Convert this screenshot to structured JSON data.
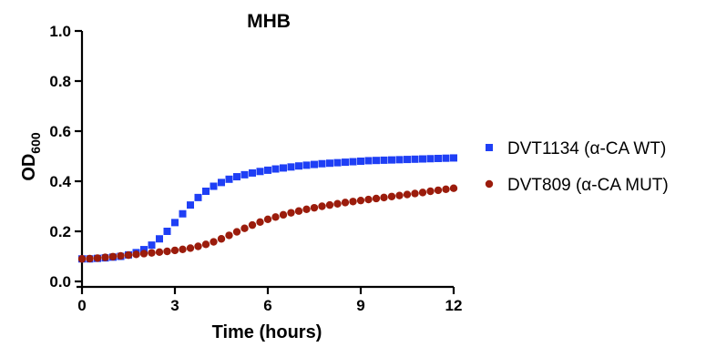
{
  "chart_data": {
    "type": "scatter",
    "title": "MHB",
    "xlabel": "Time (hours)",
    "ylabel": "OD",
    "ylabel_subscript": "600",
    "xlim": [
      0,
      12
    ],
    "ylim": [
      0,
      1.0
    ],
    "xticks": [
      0,
      3,
      6,
      9,
      12
    ],
    "xtick_labels": [
      "0",
      "3",
      "6",
      "9",
      "12"
    ],
    "yticks": [
      0,
      0.2,
      0.4,
      0.6,
      0.8,
      1.0
    ],
    "ytick_labels": [
      "0.0",
      "0.2",
      "0.4",
      "0.6",
      "0.8",
      "1.0"
    ],
    "grid": false,
    "legend_position": "right",
    "series": [
      {
        "name": "DVT1134 (α-CA WT)",
        "marker": "square",
        "color": "#1f3ff5",
        "x": [
          0,
          0.25,
          0.5,
          0.75,
          1,
          1.25,
          1.5,
          1.75,
          2,
          2.25,
          2.5,
          2.75,
          3,
          3.25,
          3.5,
          3.75,
          4,
          4.25,
          4.5,
          4.75,
          5,
          5.25,
          5.5,
          5.75,
          6,
          6.25,
          6.5,
          6.75,
          7,
          7.25,
          7.5,
          7.75,
          8,
          8.25,
          8.5,
          8.75,
          9,
          9.25,
          9.5,
          9.75,
          10,
          10.25,
          10.5,
          10.75,
          11,
          11.25,
          11.5,
          11.75,
          12
        ],
        "y": [
          0.09,
          0.09,
          0.092,
          0.094,
          0.097,
          0.1,
          0.106,
          0.115,
          0.127,
          0.145,
          0.17,
          0.2,
          0.235,
          0.27,
          0.305,
          0.335,
          0.36,
          0.38,
          0.395,
          0.408,
          0.418,
          0.426,
          0.433,
          0.439,
          0.444,
          0.449,
          0.453,
          0.457,
          0.461,
          0.464,
          0.467,
          0.47,
          0.472,
          0.474,
          0.476,
          0.478,
          0.48,
          0.482,
          0.483,
          0.484,
          0.485,
          0.486,
          0.487,
          0.488,
          0.489,
          0.49,
          0.491,
          0.492,
          0.493
        ]
      },
      {
        "name": "DVT809 (α-CA MUT)",
        "marker": "circle",
        "color": "#9b1c0c",
        "x": [
          0,
          0.25,
          0.5,
          0.75,
          1,
          1.25,
          1.5,
          1.75,
          2,
          2.25,
          2.5,
          2.75,
          3,
          3.25,
          3.5,
          3.75,
          4,
          4.25,
          4.5,
          4.75,
          5,
          5.25,
          5.5,
          5.75,
          6,
          6.25,
          6.5,
          6.75,
          7,
          7.25,
          7.5,
          7.75,
          8,
          8.25,
          8.5,
          8.75,
          9,
          9.25,
          9.5,
          9.75,
          10,
          10.25,
          10.5,
          10.75,
          11,
          11.25,
          11.5,
          11.75,
          12
        ],
        "y": [
          0.09,
          0.091,
          0.093,
          0.096,
          0.099,
          0.102,
          0.105,
          0.108,
          0.111,
          0.114,
          0.117,
          0.12,
          0.124,
          0.128,
          0.133,
          0.14,
          0.148,
          0.158,
          0.17,
          0.184,
          0.198,
          0.212,
          0.225,
          0.237,
          0.248,
          0.257,
          0.266,
          0.274,
          0.281,
          0.288,
          0.294,
          0.3,
          0.305,
          0.31,
          0.315,
          0.319,
          0.323,
          0.327,
          0.331,
          0.335,
          0.339,
          0.343,
          0.347,
          0.351,
          0.355,
          0.36,
          0.364,
          0.368,
          0.372
        ]
      }
    ]
  }
}
